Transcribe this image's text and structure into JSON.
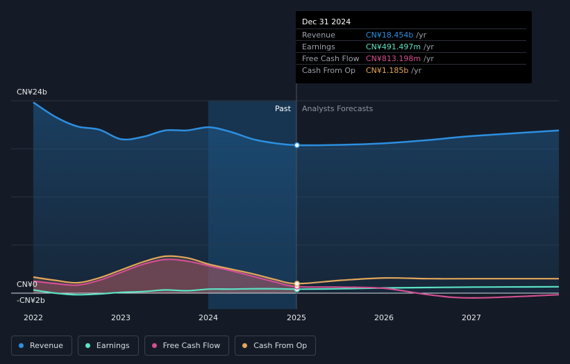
{
  "chart_data": {
    "type": "area",
    "x_ticks": [
      "2022",
      "2023",
      "2024",
      "2025",
      "2026",
      "2027"
    ],
    "y_labels": [
      "CN¥24b",
      "CN¥0",
      "-CN¥2b"
    ],
    "ylim": [
      -2,
      24
    ],
    "xlim": [
      2021.9,
      2027.98
    ],
    "past_boundary": 2025.0,
    "region_labels": {
      "past": "Past",
      "forecast": "Analysts Forecasts"
    },
    "series": [
      {
        "name": "Revenue",
        "color": "#2d8fe0",
        "points": [
          [
            2022.0,
            23.8
          ],
          [
            2022.25,
            22.0
          ],
          [
            2022.5,
            20.8
          ],
          [
            2022.75,
            20.4
          ],
          [
            2023.0,
            19.2
          ],
          [
            2023.25,
            19.5
          ],
          [
            2023.5,
            20.3
          ],
          [
            2023.75,
            20.3
          ],
          [
            2024.0,
            20.7
          ],
          [
            2024.25,
            20.1
          ],
          [
            2024.5,
            19.2
          ],
          [
            2024.75,
            18.7
          ],
          [
            2025.0,
            18.454
          ],
          [
            2025.5,
            18.5
          ],
          [
            2026.0,
            18.7
          ],
          [
            2026.5,
            19.1
          ],
          [
            2027.0,
            19.6
          ],
          [
            2027.98,
            20.3
          ]
        ]
      },
      {
        "name": "Earnings",
        "color": "#5ce3c4",
        "points": [
          [
            2022.0,
            0.4
          ],
          [
            2022.25,
            0.0
          ],
          [
            2022.5,
            -0.2
          ],
          [
            2022.75,
            -0.1
          ],
          [
            2023.0,
            0.1
          ],
          [
            2023.25,
            0.2
          ],
          [
            2023.5,
            0.4
          ],
          [
            2023.75,
            0.3
          ],
          [
            2024.0,
            0.5
          ],
          [
            2024.25,
            0.5
          ],
          [
            2024.5,
            0.55
          ],
          [
            2024.75,
            0.55
          ],
          [
            2025.0,
            0.491
          ],
          [
            2025.5,
            0.55
          ],
          [
            2026.0,
            0.65
          ],
          [
            2026.5,
            0.7
          ],
          [
            2027.0,
            0.75
          ],
          [
            2027.98,
            0.8
          ]
        ]
      },
      {
        "name": "Free Cash Flow",
        "color": "#d24f93",
        "points": [
          [
            2022.0,
            1.5
          ],
          [
            2022.25,
            1.2
          ],
          [
            2022.5,
            1.0
          ],
          [
            2022.75,
            1.6
          ],
          [
            2023.0,
            2.6
          ],
          [
            2023.25,
            3.6
          ],
          [
            2023.5,
            4.2
          ],
          [
            2023.75,
            4.0
          ],
          [
            2024.0,
            3.4
          ],
          [
            2024.25,
            2.8
          ],
          [
            2024.5,
            2.1
          ],
          [
            2024.75,
            1.4
          ],
          [
            2025.0,
            0.813
          ],
          [
            2025.5,
            0.75
          ],
          [
            2026.0,
            0.6
          ],
          [
            2026.5,
            -0.2
          ],
          [
            2027.0,
            -0.6
          ],
          [
            2027.98,
            -0.2
          ]
        ]
      },
      {
        "name": "Cash From Op",
        "color": "#e3a75b",
        "points": [
          [
            2022.0,
            2.0
          ],
          [
            2022.25,
            1.6
          ],
          [
            2022.5,
            1.3
          ],
          [
            2022.75,
            1.9
          ],
          [
            2023.0,
            2.9
          ],
          [
            2023.25,
            3.9
          ],
          [
            2023.5,
            4.6
          ],
          [
            2023.75,
            4.4
          ],
          [
            2024.0,
            3.6
          ],
          [
            2024.25,
            3.0
          ],
          [
            2024.5,
            2.4
          ],
          [
            2024.75,
            1.7
          ],
          [
            2025.0,
            1.185
          ],
          [
            2025.5,
            1.6
          ],
          [
            2026.0,
            1.9
          ],
          [
            2026.5,
            1.8
          ],
          [
            2027.0,
            1.8
          ],
          [
            2027.98,
            1.8
          ]
        ]
      }
    ],
    "tooltip": {
      "date": "Dec 31 2024",
      "rows": [
        {
          "name": "Revenue",
          "value": "CN¥18.454b",
          "unit": "/yr",
          "color": "#2d8fe0"
        },
        {
          "name": "Earnings",
          "value": "CN¥491.497m",
          "unit": "/yr",
          "color": "#5ce3c4"
        },
        {
          "name": "Free Cash Flow",
          "value": "CN¥813.198m",
          "unit": "/yr",
          "color": "#d24f93"
        },
        {
          "name": "Cash From Op",
          "value": "CN¥1.185b",
          "unit": "/yr",
          "color": "#e3a75b"
        }
      ]
    },
    "legend": [
      {
        "name": "Revenue",
        "color": "#2d8fe0"
      },
      {
        "name": "Earnings",
        "color": "#5ce3c4"
      },
      {
        "name": "Free Cash Flow",
        "color": "#d24f93"
      },
      {
        "name": "Cash From Op",
        "color": "#e3a75b"
      }
    ]
  }
}
